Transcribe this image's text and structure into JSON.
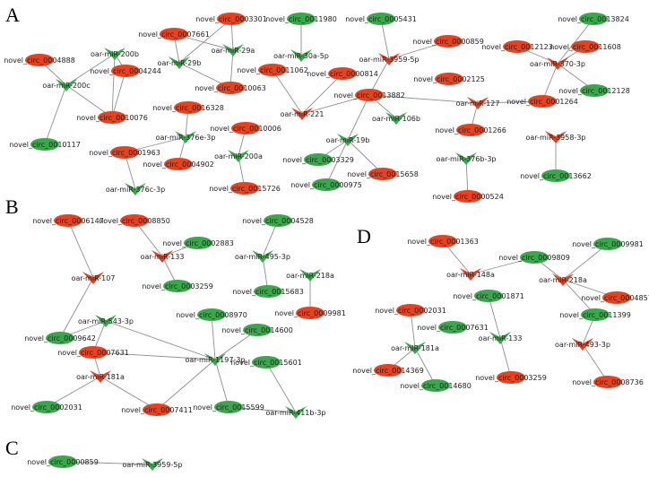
{
  "colors": {
    "circ_up": "#e8411f",
    "circ_down": "#38a84a",
    "mir_up": "#e8411f",
    "mir_down": "#38a84a",
    "edge": "#8f8f8f"
  },
  "panels": [
    {
      "key": "A",
      "label": "A",
      "nodes": [
        {
          "id": "c3301",
          "label": "novel_circ_0003301",
          "kind": "circ",
          "reg": "up"
        },
        {
          "id": "c11980",
          "label": "novel_circ_0011980",
          "kind": "circ",
          "reg": "down"
        },
        {
          "id": "c5431",
          "label": "novel_circ_0005431",
          "kind": "circ",
          "reg": "down"
        },
        {
          "id": "c13824",
          "label": "novel_circ_0013824",
          "kind": "circ",
          "reg": "down"
        },
        {
          "id": "c7661",
          "label": "novel_circ_0007661",
          "kind": "circ",
          "reg": "up"
        },
        {
          "id": "c4888",
          "label": "novel_circ_0004888",
          "kind": "circ",
          "reg": "up"
        },
        {
          "id": "m200b",
          "label": "oar-miR-200b",
          "kind": "mir",
          "reg": "down"
        },
        {
          "id": "m29b",
          "label": "oar-miR-29b",
          "kind": "mir",
          "reg": "down"
        },
        {
          "id": "m29a",
          "label": "oar-miR-29a",
          "kind": "mir",
          "reg": "down"
        },
        {
          "id": "m30a",
          "label": "oar-miR-30a-5p",
          "kind": "mir",
          "reg": "down"
        },
        {
          "id": "c859",
          "label": "novel_circ_0000859",
          "kind": "circ",
          "reg": "up"
        },
        {
          "id": "m3959",
          "label": "oar-miR-3959-5p",
          "kind": "mir",
          "reg": "up"
        },
        {
          "id": "c12123",
          "label": "novel_circ_0012123",
          "kind": "circ",
          "reg": "up"
        },
        {
          "id": "c11608",
          "label": "novel_circ_0011608",
          "kind": "circ",
          "reg": "up"
        },
        {
          "id": "m370",
          "label": "oar-miR-370-3p",
          "kind": "mir",
          "reg": "up"
        },
        {
          "id": "m200c",
          "label": "oar-miR-200c",
          "kind": "mir",
          "reg": "down"
        },
        {
          "id": "c4244",
          "label": "novel_circ_0004244",
          "kind": "circ",
          "reg": "up"
        },
        {
          "id": "c10063",
          "label": "novel_circ_0010063",
          "kind": "circ",
          "reg": "up"
        },
        {
          "id": "c11062",
          "label": "novel_circ_0011062",
          "kind": "circ",
          "reg": "up"
        },
        {
          "id": "c814",
          "label": "novel_circ_0000814",
          "kind": "circ",
          "reg": "up"
        },
        {
          "id": "c2125",
          "label": "novel_circ_0002125",
          "kind": "circ",
          "reg": "up"
        },
        {
          "id": "c13882",
          "label": "novel_circ_0013882",
          "kind": "circ",
          "reg": "up"
        },
        {
          "id": "m127",
          "label": "oar-miR-127",
          "kind": "mir",
          "reg": "up"
        },
        {
          "id": "c12128",
          "label": "novel_circ_0012128",
          "kind": "circ",
          "reg": "down"
        },
        {
          "id": "c10076",
          "label": "novel_circ_0010076",
          "kind": "circ",
          "reg": "up"
        },
        {
          "id": "c16328",
          "label": "novel_circ_0016328",
          "kind": "circ",
          "reg": "up"
        },
        {
          "id": "m221",
          "label": "oar-miR-221",
          "kind": "mir",
          "reg": "up"
        },
        {
          "id": "m106b",
          "label": "oar-miR-106b",
          "kind": "mir",
          "reg": "down"
        },
        {
          "id": "c1264",
          "label": "novel_circ_0001264",
          "kind": "circ",
          "reg": "up"
        },
        {
          "id": "c10117",
          "label": "novel_circ_0010117",
          "kind": "circ",
          "reg": "down"
        },
        {
          "id": "m376e",
          "label": "oar-miR-376e-3p",
          "kind": "mir",
          "reg": "down"
        },
        {
          "id": "c10006",
          "label": "novel_circ_0010006",
          "kind": "circ",
          "reg": "up"
        },
        {
          "id": "m19b",
          "label": "oar-miR-19b",
          "kind": "mir",
          "reg": "down"
        },
        {
          "id": "c1266",
          "label": "novel_circ_0001266",
          "kind": "circ",
          "reg": "up"
        },
        {
          "id": "m3958",
          "label": "oar-miR-3958-3p",
          "kind": "mir",
          "reg": "up"
        },
        {
          "id": "c1963",
          "label": "novel_circ_0001963",
          "kind": "circ",
          "reg": "up"
        },
        {
          "id": "m200a",
          "label": "oar-miR-200a",
          "kind": "mir",
          "reg": "down"
        },
        {
          "id": "c3329",
          "label": "novel_circ_0003329",
          "kind": "circ",
          "reg": "down"
        },
        {
          "id": "m376b",
          "label": "oar-miR-376b-3p",
          "kind": "mir",
          "reg": "down"
        },
        {
          "id": "c4902",
          "label": "novel_circ_0004902",
          "kind": "circ",
          "reg": "up"
        },
        {
          "id": "c15658",
          "label": "novel_circ_0015658",
          "kind": "circ",
          "reg": "up"
        },
        {
          "id": "c13662",
          "label": "novel_circ_0013662",
          "kind": "circ",
          "reg": "down"
        },
        {
          "id": "m376c",
          "label": "oar-miR-376c-3p",
          "kind": "mir",
          "reg": "down"
        },
        {
          "id": "c15726",
          "label": "novel_circ_0015726",
          "kind": "circ",
          "reg": "up"
        },
        {
          "id": "c975",
          "label": "novel_circ_0000975",
          "kind": "circ",
          "reg": "down"
        },
        {
          "id": "c524",
          "label": "novel_circ_0000524",
          "kind": "circ",
          "reg": "up"
        }
      ],
      "edges": [
        [
          "c4888",
          "m200c"
        ],
        [
          "m200b",
          "m200c"
        ],
        [
          "m200b",
          "c4244"
        ],
        [
          "m200c",
          "c10117"
        ],
        [
          "m200c",
          "c10076"
        ],
        [
          "c4244",
          "c10076"
        ],
        [
          "c10076",
          "m200b"
        ],
        [
          "c7661",
          "m29b"
        ],
        [
          "c7661",
          "m29a"
        ],
        [
          "c3301",
          "m29b"
        ],
        [
          "c3301",
          "m29a"
        ],
        [
          "m29b",
          "c10063"
        ],
        [
          "m29a",
          "c10063"
        ],
        [
          "c11980",
          "m30a"
        ],
        [
          "c5431",
          "m3959"
        ],
        [
          "c859",
          "m3959"
        ],
        [
          "m3959",
          "c13882"
        ],
        [
          "c814",
          "m221"
        ],
        [
          "c11062",
          "m221"
        ],
        [
          "c13882",
          "m221"
        ],
        [
          "c13882",
          "m106b"
        ],
        [
          "c13882",
          "m19b"
        ],
        [
          "c13882",
          "m127"
        ],
        [
          "m127",
          "c1264"
        ],
        [
          "c12123",
          "m370"
        ],
        [
          "c11608",
          "m370"
        ],
        [
          "c13824",
          "m370"
        ],
        [
          "m370",
          "c1264"
        ],
        [
          "m370",
          "c12128"
        ],
        [
          "c16328",
          "m376e"
        ],
        [
          "m376e",
          "c1963"
        ],
        [
          "m376e",
          "c4902"
        ],
        [
          "c1963",
          "m376c"
        ],
        [
          "c10006",
          "m200a"
        ],
        [
          "m200a",
          "c15726"
        ],
        [
          "m19b",
          "c3329"
        ],
        [
          "m19b",
          "c975"
        ],
        [
          "m19b",
          "c15658"
        ],
        [
          "m127",
          "c1266"
        ],
        [
          "m376b",
          "c524"
        ],
        [
          "m3958",
          "c13662"
        ]
      ]
    },
    {
      "key": "B",
      "label": "B",
      "nodes": [
        {
          "id": "c6147",
          "label": "novel_circ_0006147",
          "kind": "circ",
          "reg": "up"
        },
        {
          "id": "c8850",
          "label": "novel_circ_0008850",
          "kind": "circ",
          "reg": "up"
        },
        {
          "id": "c4528",
          "label": "novel_circ_0004528",
          "kind": "circ",
          "reg": "down"
        },
        {
          "id": "c2883",
          "label": "novel_circ_0002883",
          "kind": "circ",
          "reg": "down"
        },
        {
          "id": "m133",
          "label": "oar-miR-133",
          "kind": "mir",
          "reg": "up"
        },
        {
          "id": "m495",
          "label": "oar-miR-495-3p",
          "kind": "mir",
          "reg": "down"
        },
        {
          "id": "m218a",
          "label": "oar-miR-218a",
          "kind": "mir",
          "reg": "down"
        },
        {
          "id": "m107",
          "label": "oar-miR-107",
          "kind": "mir",
          "reg": "up"
        },
        {
          "id": "c3259",
          "label": "novel_circ_0003259",
          "kind": "circ",
          "reg": "down"
        },
        {
          "id": "c15683",
          "label": "novel_circ_0015683",
          "kind": "circ",
          "reg": "down"
        },
        {
          "id": "c9981",
          "label": "novel_circ_0009981",
          "kind": "circ",
          "reg": "up"
        },
        {
          "id": "m543",
          "label": "oar-miR-543-3p",
          "kind": "mir",
          "reg": "down"
        },
        {
          "id": "c8970",
          "label": "novel_circ_0008970",
          "kind": "circ",
          "reg": "down"
        },
        {
          "id": "c9642",
          "label": "novel_circ_0009642",
          "kind": "circ",
          "reg": "down"
        },
        {
          "id": "c14600",
          "label": "novel_circ_0014600",
          "kind": "circ",
          "reg": "down"
        },
        {
          "id": "c7631",
          "label": "novel_circ_0007631",
          "kind": "circ",
          "reg": "up"
        },
        {
          "id": "m1197",
          "label": "oar-miR-1197-3p",
          "kind": "mir",
          "reg": "down"
        },
        {
          "id": "c15601",
          "label": "novel_circ_0015601",
          "kind": "circ",
          "reg": "down"
        },
        {
          "id": "m181a",
          "label": "oar-miR-181a",
          "kind": "mir",
          "reg": "up"
        },
        {
          "id": "c2031",
          "label": "novel_circ_0002031",
          "kind": "circ",
          "reg": "down"
        },
        {
          "id": "c7411",
          "label": "novel_circ_0007411",
          "kind": "circ",
          "reg": "up"
        },
        {
          "id": "c15599",
          "label": "novel_circ_0015599",
          "kind": "circ",
          "reg": "down"
        },
        {
          "id": "m411b",
          "label": "oar-miR-411b-3p",
          "kind": "mir",
          "reg": "down"
        }
      ],
      "edges": [
        [
          "c6147",
          "m107"
        ],
        [
          "m107",
          "c9642"
        ],
        [
          "c8850",
          "m133"
        ],
        [
          "c2883",
          "m133"
        ],
        [
          "m133",
          "c3259"
        ],
        [
          "c4528",
          "m495"
        ],
        [
          "m495",
          "c15683"
        ],
        [
          "m218a",
          "c9981"
        ],
        [
          "c9642",
          "m543"
        ],
        [
          "m543",
          "c7631"
        ],
        [
          "m543",
          "m1197"
        ],
        [
          "c8970",
          "m1197"
        ],
        [
          "c14600",
          "m1197"
        ],
        [
          "m1197",
          "c7631"
        ],
        [
          "m1197",
          "c7411"
        ],
        [
          "m1197",
          "c15599"
        ],
        [
          "c7631",
          "m181a"
        ],
        [
          "m181a",
          "c2031"
        ],
        [
          "m181a",
          "c7411"
        ],
        [
          "c15601",
          "m411b"
        ],
        [
          "c15599",
          "m411b"
        ]
      ]
    },
    {
      "key": "C",
      "label": "C",
      "nodes": [
        {
          "id": "c859c",
          "label": "novel_circ_0000859",
          "kind": "circ",
          "reg": "down"
        },
        {
          "id": "m3959c",
          "label": "oar-miR-3959-5p",
          "kind": "mir",
          "reg": "down"
        }
      ],
      "edges": [
        [
          "c859c",
          "m3959c"
        ]
      ]
    },
    {
      "key": "D",
      "label": "D",
      "nodes": [
        {
          "id": "d1363",
          "label": "novel_circ_0001363",
          "kind": "circ",
          "reg": "up"
        },
        {
          "id": "d9981",
          "label": "novel_circ_0009981",
          "kind": "circ",
          "reg": "down"
        },
        {
          "id": "d9809",
          "label": "novel_circ_0009809",
          "kind": "circ",
          "reg": "down"
        },
        {
          "id": "d148a",
          "label": "oar-miR-148a",
          "kind": "mir",
          "reg": "up"
        },
        {
          "id": "d218a",
          "label": "oar-miR-218a",
          "kind": "mir",
          "reg": "up"
        },
        {
          "id": "d4857",
          "label": "novel_circ_0004857",
          "kind": "circ",
          "reg": "up"
        },
        {
          "id": "d1871",
          "label": "novel_circ_0001871",
          "kind": "circ",
          "reg": "down"
        },
        {
          "id": "d2031",
          "label": "novel_circ_0002031",
          "kind": "circ",
          "reg": "up"
        },
        {
          "id": "d11399",
          "label": "novel_circ_0011399",
          "kind": "circ",
          "reg": "down"
        },
        {
          "id": "d7631",
          "label": "novel_circ_0007631",
          "kind": "circ",
          "reg": "down"
        },
        {
          "id": "d133",
          "label": "oar-miR-133",
          "kind": "mir",
          "reg": "down"
        },
        {
          "id": "d181a",
          "label": "oar-miR-181a",
          "kind": "mir",
          "reg": "down"
        },
        {
          "id": "d493",
          "label": "oar-miR-493-3p",
          "kind": "mir",
          "reg": "up"
        },
        {
          "id": "d14369",
          "label": "novel_circ_0014369",
          "kind": "circ",
          "reg": "up"
        },
        {
          "id": "d3259",
          "label": "novel_circ_0003259",
          "kind": "circ",
          "reg": "up"
        },
        {
          "id": "d14680",
          "label": "novel_circ_0014680",
          "kind": "circ",
          "reg": "down"
        },
        {
          "id": "d8736",
          "label": "novel_circ_0008736",
          "kind": "circ",
          "reg": "up"
        }
      ],
      "edges": [
        [
          "d1363",
          "d148a"
        ],
        [
          "d148a",
          "d9809"
        ],
        [
          "d9809",
          "d218a"
        ],
        [
          "d9981",
          "d218a"
        ],
        [
          "d218a",
          "d4857"
        ],
        [
          "d218a",
          "d11399"
        ],
        [
          "d11399",
          "d493"
        ],
        [
          "d493",
          "d8736"
        ],
        [
          "d1871",
          "d133"
        ],
        [
          "d133",
          "d3259"
        ],
        [
          "d2031",
          "d181a"
        ],
        [
          "d181a",
          "d14369"
        ],
        [
          "d181a",
          "d14680"
        ]
      ]
    }
  ]
}
